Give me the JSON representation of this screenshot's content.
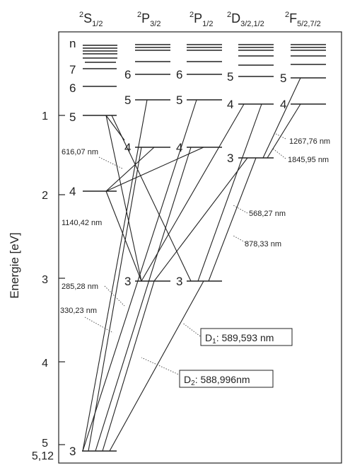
{
  "y_axis": {
    "label": "Energie [eV]",
    "ticks": [
      {
        "label": "1",
        "value": 1
      },
      {
        "label": "2",
        "value": 2
      },
      {
        "label": "3",
        "value": 3
      },
      {
        "label": "4",
        "value": 4
      },
      {
        "label": "5",
        "value": 5
      },
      {
        "label": "5,12",
        "value": 5.12
      }
    ]
  },
  "columns": [
    {
      "id": "S12",
      "sup": "2",
      "main": "S",
      "sub": "1/2"
    },
    {
      "id": "P32",
      "sup": "2",
      "main": "P",
      "sub": "3/2"
    },
    {
      "id": "P12",
      "sup": "2",
      "main": "P",
      "sub": "1/2"
    },
    {
      "id": "D",
      "sup": "2",
      "main": "D",
      "sub": "3/2,1/2"
    },
    {
      "id": "F",
      "sup": "2",
      "main": "F",
      "sub": "5/2,7/2"
    }
  ],
  "level_labels": {
    "n": "n",
    "S12": [
      "7",
      "6",
      "5",
      "4",
      "3"
    ],
    "P32": [
      "6",
      "5",
      "4",
      "3"
    ],
    "P12": [
      "6",
      "5",
      "4",
      "3"
    ],
    "D": [
      "5",
      "4",
      "3"
    ],
    "F": [
      "5",
      "4"
    ]
  },
  "wavelengths": {
    "w616": "616,07 nm",
    "w1140": "1140,42 nm",
    "w285": "285,28 nm",
    "w330": "330,23 nm",
    "w1267": "1267,76 nm",
    "w1845": "1845,95 nm",
    "w568": "568,27 nm",
    "w878": "878,33 nm"
  },
  "d_lines": {
    "d1": {
      "name": "D",
      "sub": "1",
      "value": ": 589,593 nm"
    },
    "d2": {
      "name": "D",
      "sub": "2",
      "value": ": 588,996nm"
    }
  }
}
